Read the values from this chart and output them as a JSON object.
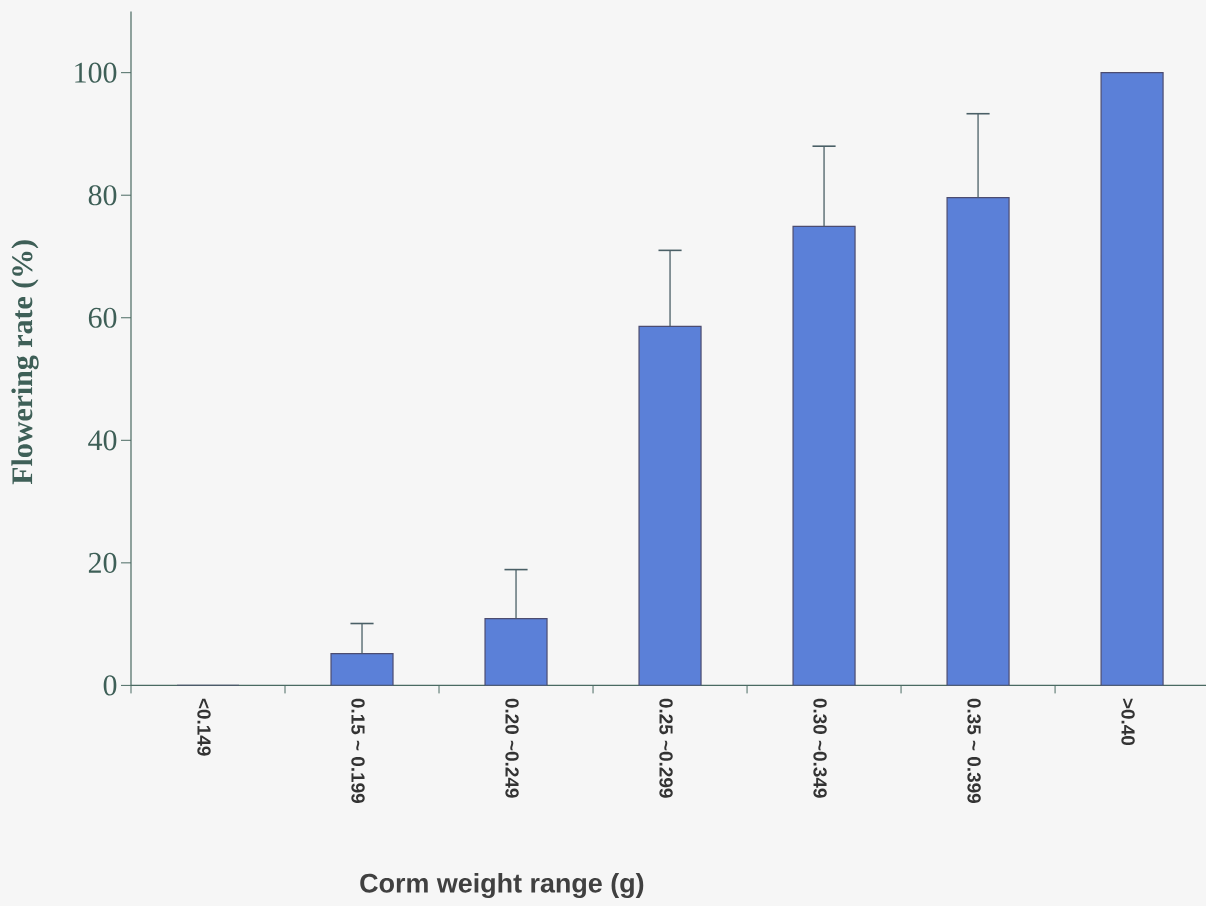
{
  "chart_data": {
    "type": "bar",
    "xlabel": "Corm weight range (g)",
    "ylabel": "Flowering rate (%)",
    "categories": [
      "<0.149",
      "0.15 ~ 0.199",
      "0.20 ~0.249",
      "0.25 ~0.299",
      "0.30 ~0.349",
      "0.35 ~ 0.399",
      ">0.40"
    ],
    "values": [
      0,
      5.2,
      10.9,
      58.6,
      74.9,
      79.6,
      100
    ],
    "errors": [
      null,
      [
        5.2,
        10.1
      ],
      [
        10.9,
        18.9
      ],
      [
        58.6,
        71.0
      ],
      [
        74.9,
        88.0
      ],
      [
        79.6,
        93.3
      ],
      null
    ],
    "color": "#5b80d8",
    "ylim": [
      0,
      110
    ],
    "yticks": [
      0,
      20,
      40,
      60,
      80,
      100
    ],
    "grid": false
  }
}
